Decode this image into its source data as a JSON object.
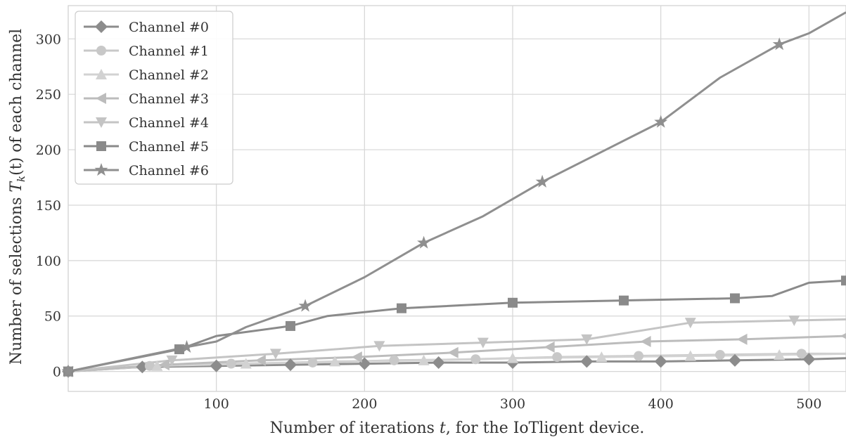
{
  "chart_data": {
    "type": "line",
    "title": "",
    "xlabel": "Number of iterations t, for the IoTligent device.",
    "ylabel": "Number of selections T_k(t) of each channel",
    "ylabel_parts": {
      "prefix": "Number of selections ",
      "symbol": "T",
      "subscript": "k",
      "argument": "(t)",
      "suffix": " of each channel"
    },
    "xlabel_parts": {
      "prefix": "Number of iterations ",
      "symbol": "t",
      "suffix": ", for the IoTligent device."
    },
    "xlim": [
      0,
      525
    ],
    "ylim": [
      -18,
      330
    ],
    "xticks": [
      100,
      200,
      300,
      400,
      500
    ],
    "yticks": [
      0,
      50,
      100,
      150,
      200,
      250,
      300
    ],
    "grid": true,
    "legend_position": "top-left",
    "series": [
      {
        "name": "Channel #0",
        "marker": "diamond",
        "color": "#8c8c8c",
        "x": [
          0,
          50,
          100,
          150,
          200,
          250,
          300,
          350,
          400,
          450,
          500,
          525
        ],
        "y": [
          0,
          4,
          5,
          6,
          7,
          8,
          8,
          9,
          9,
          10,
          11,
          12
        ]
      },
      {
        "name": "Channel #1",
        "marker": "circle",
        "color": "#c8c8c8",
        "x": [
          0,
          55,
          110,
          165,
          220,
          275,
          330,
          385,
          440,
          495,
          525
        ],
        "y": [
          0,
          5,
          7,
          8,
          10,
          11,
          13,
          14,
          15,
          16,
          16
        ]
      },
      {
        "name": "Channel #2",
        "marker": "triangle-up",
        "color": "#d2d2d2",
        "x": [
          0,
          60,
          120,
          180,
          240,
          300,
          360,
          420,
          480,
          525
        ],
        "y": [
          0,
          5,
          7,
          9,
          10,
          12,
          13,
          14,
          15,
          16
        ]
      },
      {
        "name": "Channel #3",
        "marker": "triangle-left",
        "color": "#bcbcbc",
        "x": [
          0,
          65,
          130,
          195,
          260,
          325,
          390,
          455,
          525
        ],
        "y": [
          0,
          6,
          10,
          13,
          17,
          22,
          27,
          29,
          32
        ]
      },
      {
        "name": "Channel #4",
        "marker": "triangle-down",
        "color": "#c4c4c4",
        "x": [
          0,
          70,
          140,
          210,
          280,
          350,
          420,
          490,
          525
        ],
        "y": [
          0,
          10,
          16,
          23,
          26,
          29,
          44,
          46,
          47
        ]
      },
      {
        "name": "Channel #5",
        "marker": "square",
        "color": "#8a8a8a",
        "x": [
          0,
          75,
          100,
          150,
          175,
          225,
          300,
          375,
          450,
          475,
          500,
          525
        ],
        "y": [
          0,
          20,
          32,
          41,
          50,
          57,
          62,
          64,
          66,
          68,
          80,
          82
        ]
      },
      {
        "name": "Channel #6",
        "marker": "star",
        "color": "#8f8f8f",
        "x": [
          0,
          80,
          100,
          120,
          160,
          200,
          240,
          280,
          320,
          360,
          400,
          440,
          480,
          500,
          525
        ],
        "y": [
          0,
          22,
          27,
          40,
          59,
          85,
          116,
          140,
          171,
          198,
          225,
          265,
          295,
          305,
          324
        ]
      }
    ],
    "series_markers_x": {
      "Channel #0": [
        0,
        50,
        100,
        150,
        200,
        250,
        300,
        350,
        400,
        450,
        500
      ],
      "Channel #1": [
        0,
        55,
        110,
        165,
        220,
        275,
        330,
        385,
        440,
        495
      ],
      "Channel #2": [
        0,
        60,
        120,
        180,
        240,
        300,
        360,
        420,
        480
      ],
      "Channel #3": [
        0,
        65,
        130,
        195,
        260,
        325,
        390,
        455,
        525
      ],
      "Channel #4": [
        0,
        70,
        140,
        210,
        280,
        350,
        420,
        490
      ],
      "Channel #5": [
        0,
        75,
        150,
        225,
        300,
        375,
        450,
        525
      ],
      "Channel #6": [
        0,
        80,
        160,
        240,
        320,
        400,
        480
      ]
    }
  }
}
